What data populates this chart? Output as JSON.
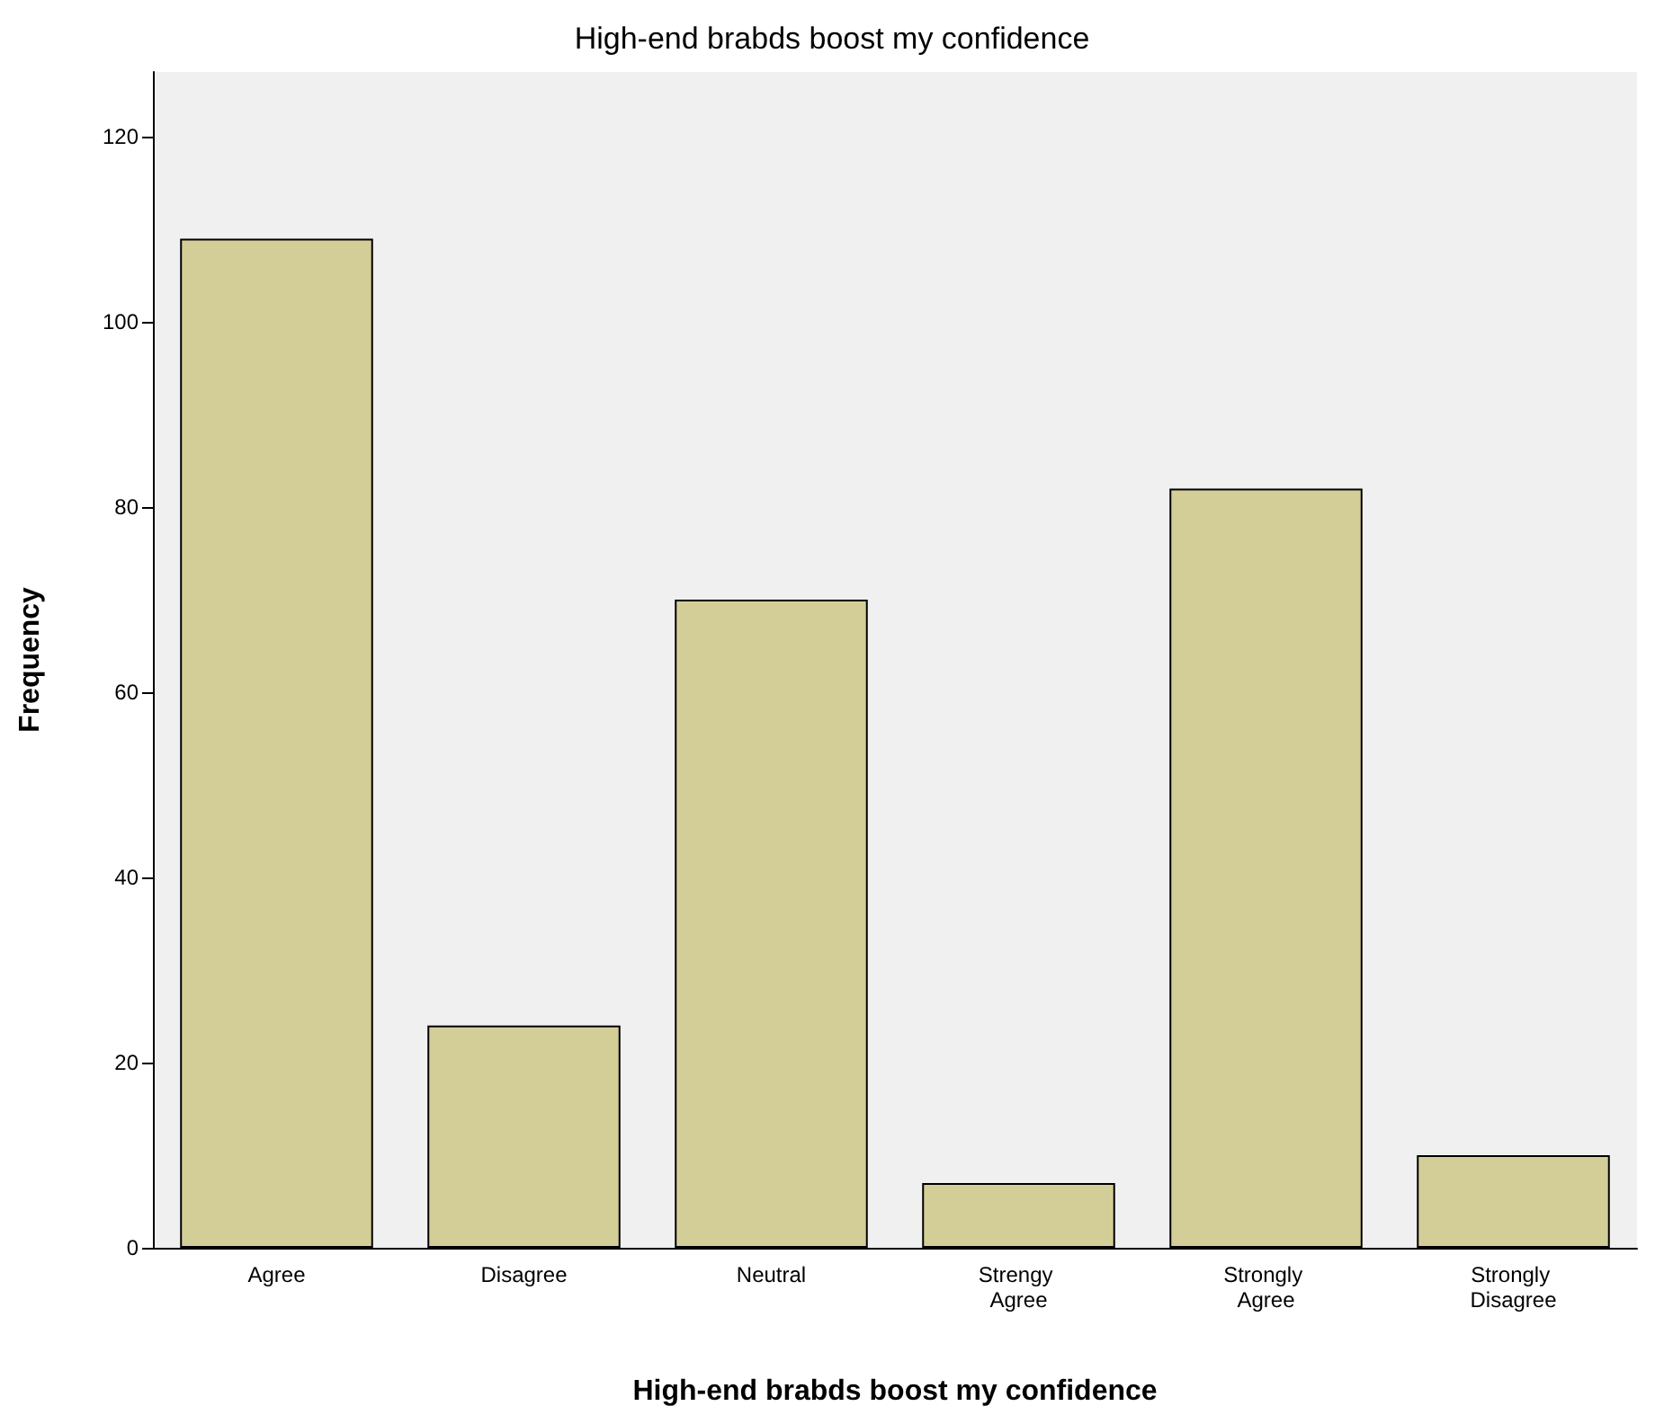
{
  "chart_data": {
    "type": "bar",
    "title": "High-end brabds boost my confidence",
    "xlabel": "High-end brabds boost my confidence",
    "ylabel": "Frequency",
    "categories": [
      "Agree",
      "Disagree",
      "Neutral",
      "Strengy Agree",
      "Strongly Agree",
      "Strongly Disagree"
    ],
    "values": [
      109,
      24,
      70,
      7,
      82,
      10
    ],
    "color": "#d3ce98",
    "ylim": [
      0,
      127
    ],
    "yticks": [
      0,
      20,
      40,
      60,
      80,
      100,
      120
    ],
    "grid": false
  }
}
